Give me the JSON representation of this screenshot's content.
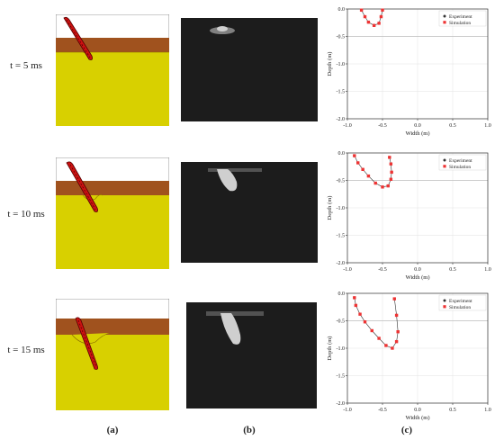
{
  "rows": [
    {
      "time": "t = 5 ms"
    },
    {
      "time": "t = 10 ms"
    },
    {
      "time": "t = 15 ms"
    }
  ],
  "panel_labels": [
    "(a)",
    "(b)",
    "(c)"
  ],
  "colors": {
    "air": "#ffffff",
    "crust": "#a0521e",
    "soil": "#d8d000",
    "tool": "#cc1111",
    "experiment": "#333333",
    "simulation": "#ee3333",
    "photo_bg": "#1c1c1c"
  },
  "chart_data": [
    {
      "type": "scatter",
      "xlabel": "Width (m)",
      "ylabel": "Depth (m)",
      "xlim": [
        -1.0,
        1.0
      ],
      "ylim": [
        -2.0,
        0.0
      ],
      "xticks": [
        "-1.0",
        "-0.5",
        "0.0",
        "0.5",
        "1.0"
      ],
      "yticks": [
        "0.0",
        "-0.5",
        "-1.0",
        "-1.5",
        "-2.0"
      ],
      "grid": true,
      "legend_position": "top-right",
      "series": [
        {
          "name": "Experiment",
          "x": [
            -0.8,
            -0.75,
            -0.7,
            -0.62,
            -0.55,
            -0.52,
            -0.5
          ],
          "y": [
            -0.02,
            -0.14,
            -0.24,
            -0.3,
            -0.26,
            -0.14,
            -0.02
          ]
        },
        {
          "name": "Simulation",
          "x": [
            -0.8,
            -0.75,
            -0.7,
            -0.62,
            -0.55,
            -0.52,
            -0.5
          ],
          "y": [
            -0.02,
            -0.14,
            -0.24,
            -0.3,
            -0.26,
            -0.14,
            -0.02
          ]
        }
      ]
    },
    {
      "type": "scatter",
      "xlabel": "Width (m)",
      "ylabel": "Depth (m)",
      "xlim": [
        -1.0,
        1.0
      ],
      "ylim": [
        -2.0,
        0.0
      ],
      "xticks": [
        "-1.0",
        "-0.5",
        "0.0",
        "0.5",
        "1.0"
      ],
      "yticks": [
        "0.0",
        "-0.5",
        "-1.0",
        "-1.5",
        "-2.0"
      ],
      "grid": true,
      "legend_position": "top-right",
      "series": [
        {
          "name": "Experiment",
          "x": [
            -0.9,
            -0.85,
            -0.78,
            -0.7,
            -0.6,
            -0.5,
            -0.42,
            -0.38,
            -0.37,
            -0.38,
            -0.4
          ],
          "y": [
            -0.05,
            -0.18,
            -0.3,
            -0.42,
            -0.55,
            -0.62,
            -0.6,
            -0.48,
            -0.35,
            -0.2,
            -0.08
          ]
        },
        {
          "name": "Simulation",
          "x": [
            -0.9,
            -0.85,
            -0.78,
            -0.7,
            -0.6,
            -0.5,
            -0.42,
            -0.38,
            -0.37,
            -0.38,
            -0.4
          ],
          "y": [
            -0.05,
            -0.18,
            -0.3,
            -0.42,
            -0.55,
            -0.62,
            -0.6,
            -0.48,
            -0.35,
            -0.2,
            -0.08
          ]
        }
      ]
    },
    {
      "type": "scatter",
      "xlabel": "Width (m)",
      "ylabel": "Depth (m)",
      "xlim": [
        -1.0,
        1.0
      ],
      "ylim": [
        -2.0,
        0.0
      ],
      "xticks": [
        "-1.0",
        "-0.5",
        "0.0",
        "0.5",
        "1.0"
      ],
      "yticks": [
        "0.0",
        "-0.5",
        "-1.0",
        "-1.5",
        "-2.0"
      ],
      "grid": true,
      "legend_position": "top-right",
      "series": [
        {
          "name": "Experiment",
          "x": [
            -0.9,
            -0.88,
            -0.82,
            -0.75,
            -0.65,
            -0.55,
            -0.45,
            -0.36,
            -0.3,
            -0.28,
            -0.3,
            -0.33
          ],
          "y": [
            -0.08,
            -0.22,
            -0.38,
            -0.52,
            -0.68,
            -0.82,
            -0.95,
            -1.0,
            -0.88,
            -0.7,
            -0.4,
            -0.1
          ]
        },
        {
          "name": "Simulation",
          "x": [
            -0.9,
            -0.88,
            -0.82,
            -0.75,
            -0.65,
            -0.55,
            -0.45,
            -0.36,
            -0.3,
            -0.28,
            -0.3,
            -0.33
          ],
          "y": [
            -0.08,
            -0.22,
            -0.38,
            -0.52,
            -0.68,
            -0.82,
            -0.95,
            -1.0,
            -0.88,
            -0.7,
            -0.4,
            -0.1
          ]
        }
      ]
    }
  ]
}
